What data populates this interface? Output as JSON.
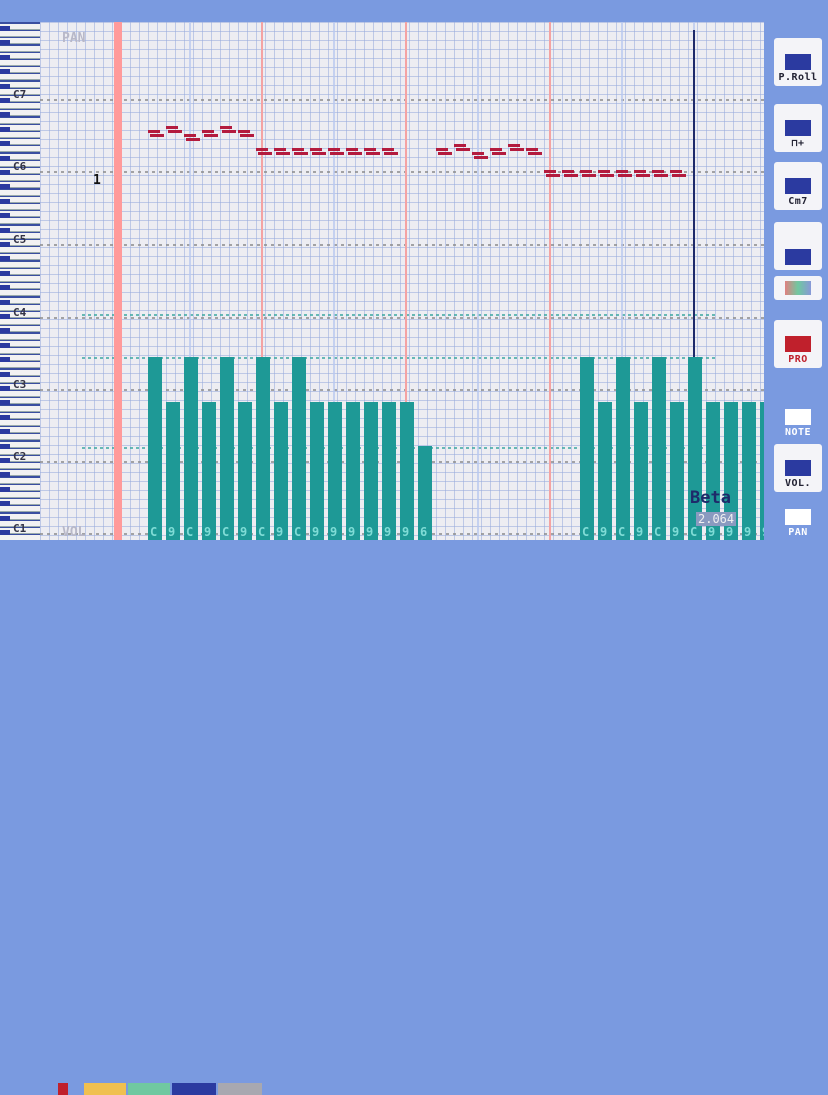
{
  "labels": {
    "pan": "PAN",
    "vol": "VOL",
    "track_marker": "1"
  },
  "piano_roll": {
    "octave_labels": [
      "C7",
      "C6",
      "C5",
      "C4",
      "C3",
      "C2",
      "C1"
    ]
  },
  "note_name_glyph": "C",
  "note_tail_glyph": "9",
  "note_last_glyph": "6",
  "sidebar": {
    "items": [
      {
        "label": "P.Roll",
        "icon": "piano-roll-icon"
      },
      {
        "label": "⊓+",
        "icon": "waveform-add-icon"
      },
      {
        "label": "Cm7",
        "icon": "chord-icon"
      },
      {
        "label": "",
        "icon": "wedge-icon"
      },
      {
        "label": "",
        "icon": "palette-icon"
      },
      {
        "label": "PRO",
        "icon": "pro-icon"
      },
      {
        "label": "NOTE",
        "icon": "note-icon"
      },
      {
        "label": "VOL.",
        "icon": "volume-icon"
      },
      {
        "label": "PAN",
        "icon": "pan-icon"
      }
    ]
  },
  "version": {
    "badge": "Beta",
    "number": "2.064"
  },
  "colors": {
    "grid_bg": "#ededf2",
    "note": "#b31b3e",
    "velocity_bar": "#1e9996",
    "playhead": "#ff9a9a",
    "beat_line": "#f4a3a3",
    "end_line": "#1e2a6a",
    "sidebar_bg": "#7a9ae0"
  },
  "velocity_levels": [
    4,
    3,
    4,
    3,
    4,
    3,
    4,
    3,
    4,
    3,
    3,
    3,
    3,
    3,
    3,
    2,
    0,
    0,
    0,
    0,
    0,
    0,
    0,
    0,
    4,
    3,
    4,
    3,
    4,
    3,
    4,
    3,
    3,
    3,
    3,
    3,
    3,
    2
  ]
}
